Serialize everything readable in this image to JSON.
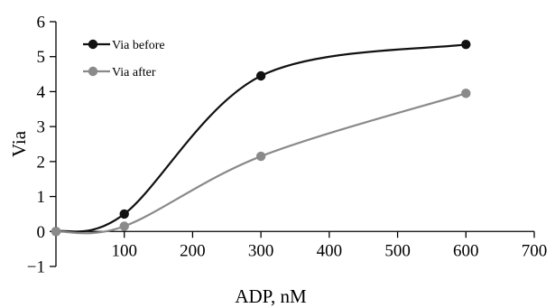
{
  "chart_data": {
    "type": "line",
    "xlabel": "ADP, nM",
    "ylabel": "Via",
    "xlim": [
      0,
      700
    ],
    "ylim": [
      -1,
      6
    ],
    "x_ticks": [
      100,
      200,
      300,
      400,
      500,
      600,
      700
    ],
    "y_ticks": [
      -1,
      0,
      1,
      2,
      3,
      4,
      5,
      6
    ],
    "x_tick_labels": [
      "100",
      "200",
      "300",
      "400",
      "500",
      "600",
      "700"
    ],
    "y_tick_labels": [
      "−1",
      "0",
      "1",
      "2",
      "3",
      "4",
      "5",
      "6"
    ],
    "grid": false,
    "legend_position": "top-left",
    "smooth": true,
    "series": [
      {
        "name": "Via before",
        "color": "#111111",
        "x": [
          0,
          100,
          300,
          600
        ],
        "y": [
          0,
          0.5,
          4.45,
          5.35
        ]
      },
      {
        "name": "Via after",
        "color": "#8a8a8a",
        "x": [
          0,
          100,
          300,
          600
        ],
        "y": [
          0,
          0.15,
          2.15,
          3.95
        ]
      }
    ]
  }
}
